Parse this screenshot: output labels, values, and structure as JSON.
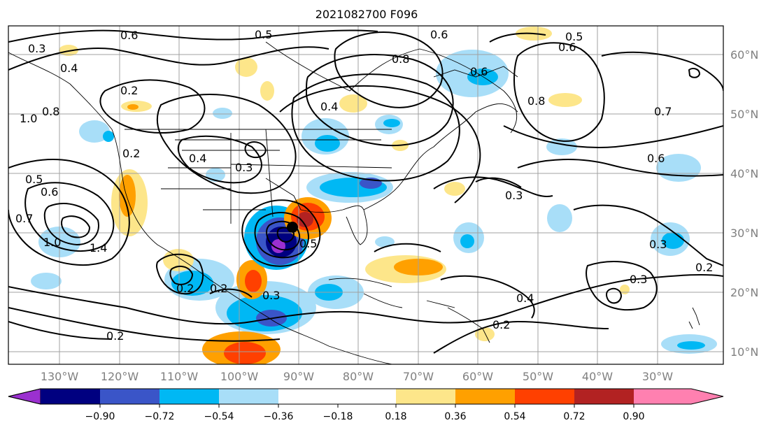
{
  "title": "2021082700 F096",
  "lon_labels": [
    "130°W",
    "120°W",
    "110°W",
    "100°W",
    "90°W",
    "80°W",
    "70°W",
    "60°W",
    "50°W",
    "40°W",
    "30°W"
  ],
  "lat_labels": [
    "60°N",
    "50°N",
    "40°N",
    "30°N",
    "20°N",
    "10°N"
  ],
  "colorbar": {
    "ticks": [
      "−0.90",
      "−0.72",
      "−0.54",
      "−0.36",
      "−0.18",
      "0.18",
      "0.36",
      "0.54",
      "0.72",
      "0.90"
    ],
    "colors": [
      "#9b30d0",
      "#000080",
      "#3a55c8",
      "#00b8f4",
      "#a8def8",
      "#ffffff",
      "#fde68a",
      "#ffa000",
      "#ff4000",
      "#b22222",
      "#ff80b0"
    ]
  },
  "contour_labels": [
    {
      "text": "0.6"
    },
    {
      "text": "0.5"
    },
    {
      "text": "0.3"
    },
    {
      "text": "0.4"
    },
    {
      "text": "0.2"
    },
    {
      "text": "1.0"
    },
    {
      "text": "0.8"
    },
    {
      "text": "0.2"
    },
    {
      "text": "0.5"
    },
    {
      "text": "0.6"
    },
    {
      "text": "0.7"
    },
    {
      "text": "1.0"
    },
    {
      "text": "1.4"
    },
    {
      "text": "0.4"
    },
    {
      "text": "0.3"
    },
    {
      "text": "0.2"
    },
    {
      "text": "0.3"
    },
    {
      "text": "0.5"
    },
    {
      "text": "0.8"
    },
    {
      "text": "0.4"
    },
    {
      "text": "0.6"
    },
    {
      "text": "0.6"
    },
    {
      "text": "0.5"
    },
    {
      "text": "0.6"
    },
    {
      "text": "0.8"
    },
    {
      "text": "0.7"
    },
    {
      "text": "0.6"
    },
    {
      "text": "0.3"
    },
    {
      "text": "0.3"
    },
    {
      "text": "0.2"
    },
    {
      "text": "0.3"
    },
    {
      "text": "0.4"
    },
    {
      "text": "0.2"
    },
    {
      "text": "0.2"
    },
    {
      "text": "0.2"
    }
  ]
}
